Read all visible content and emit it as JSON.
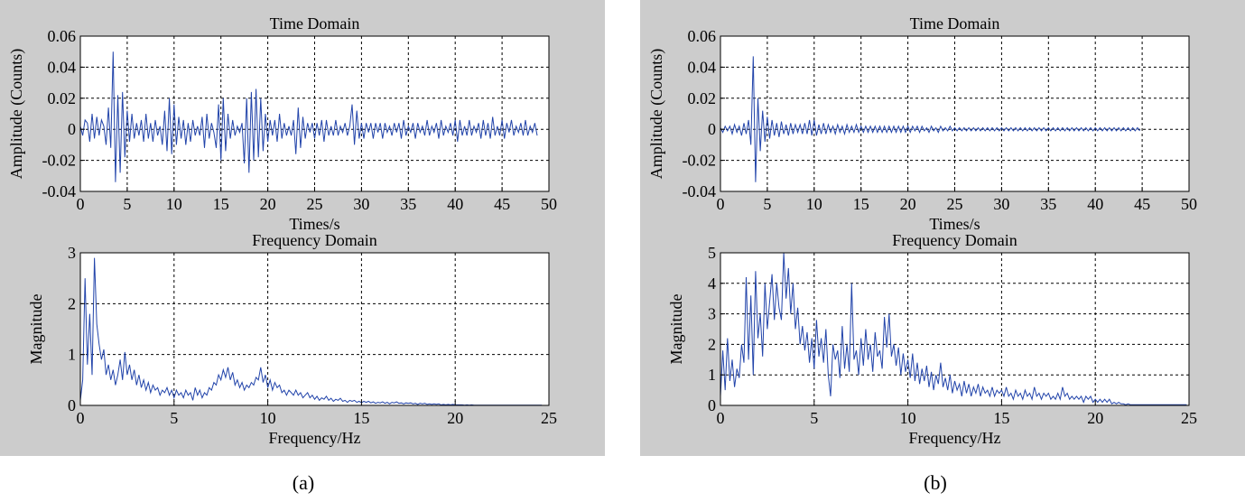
{
  "colors": {
    "panel_bg": "#cccccc",
    "plot_bg": "#ffffff",
    "line": "#2244aa",
    "grid": "#000000"
  },
  "captions": [
    "(a)",
    "(b)"
  ],
  "chart_data": [
    {
      "type": "line",
      "title": "Time Domain",
      "xlabel": "Times/s",
      "ylabel": "Amplitude (Counts)",
      "xlim": [
        0,
        50
      ],
      "ylim": [
        -0.04,
        0.06
      ],
      "xticks": [
        "0",
        "5",
        "10",
        "15",
        "20",
        "25",
        "30",
        "35",
        "40",
        "45",
        "50"
      ],
      "yticks": [
        "-0.04",
        "-0.02",
        "0",
        "0.02",
        "0.04",
        "0.06"
      ],
      "grid": true,
      "series": [
        {
          "x_step": 0.25,
          "x_start": 0,
          "values": [
            0.002,
            -0.004,
            0.006,
            0.004,
            -0.008,
            0.01,
            -0.006,
            0.008,
            -0.004,
            0.006,
            0.002,
            -0.01,
            0.014,
            -0.012,
            0.05,
            -0.034,
            0.022,
            -0.028,
            0.024,
            -0.018,
            0.012,
            -0.008,
            0.01,
            -0.006,
            0.004,
            -0.004,
            0.006,
            -0.008,
            0.01,
            -0.006,
            0.004,
            -0.008,
            0.006,
            -0.004,
            0.002,
            -0.01,
            0.012,
            -0.014,
            0.02,
            -0.016,
            0.016,
            -0.01,
            0.008,
            -0.006,
            0.006,
            -0.01,
            0.004,
            -0.008,
            0.006,
            -0.004,
            0.002,
            -0.004,
            0.008,
            -0.012,
            0.01,
            -0.006,
            0.004,
            -0.002,
            -0.012,
            0.016,
            -0.02,
            0.02,
            -0.014,
            0.01,
            -0.006,
            0.006,
            -0.004,
            0.002,
            -0.002,
            0.004,
            -0.022,
            0.02,
            -0.028,
            0.024,
            -0.02,
            0.026,
            -0.018,
            0.02,
            -0.014,
            0.01,
            -0.008,
            0.006,
            -0.004,
            0.006,
            -0.008,
            0.01,
            -0.006,
            0.004,
            -0.004,
            0.002,
            -0.004,
            0.006,
            -0.016,
            0.014,
            -0.012,
            0.008,
            -0.006,
            0.004,
            -0.002,
            0.004,
            -0.006,
            0.004,
            -0.004,
            0.006,
            -0.008,
            0.006,
            -0.004,
            0.002,
            -0.004,
            0.006,
            -0.004,
            0.002,
            -0.002,
            0.004,
            -0.004,
            0.002,
            0.016,
            -0.01,
            0.012,
            -0.006,
            0.004,
            -0.006,
            0.004,
            -0.002,
            0.004,
            -0.006,
            0.004,
            -0.002,
            0.004,
            -0.006,
            0.004,
            -0.002,
            0.002,
            -0.004,
            0.004,
            -0.002,
            0.004,
            -0.006,
            0.006,
            -0.004,
            0.002,
            -0.002,
            0.004,
            -0.006,
            0.004,
            -0.002,
            0.002,
            -0.004,
            0.006,
            -0.004,
            0.002,
            -0.002,
            0.004,
            -0.006,
            0.006,
            -0.004,
            0.002,
            -0.002,
            0.004,
            -0.004,
            0.006,
            -0.008,
            0.006,
            -0.004,
            0.002,
            -0.004,
            0.006,
            -0.004,
            0.002,
            -0.002,
            0.004,
            -0.006,
            0.006,
            -0.004,
            0.004,
            -0.006,
            0.008,
            -0.004,
            0.002,
            -0.004,
            0.006,
            -0.006,
            0.004,
            -0.002,
            0.006,
            -0.004,
            0.002,
            -0.002,
            0.004,
            -0.004,
            0.006,
            -0.004,
            0.002,
            -0.002,
            0.004,
            -0.004
          ]
        }
      ]
    },
    {
      "type": "line",
      "title": "Frequency Domain",
      "xlabel": "Frequency/Hz",
      "ylabel": "Magnitude",
      "xlim": [
        0,
        25
      ],
      "ylim": [
        0,
        3
      ],
      "xticks": [
        "0",
        "5",
        "10",
        "15",
        "20",
        "25"
      ],
      "yticks": [
        "0",
        "1",
        "2",
        "3"
      ],
      "grid": true,
      "series": [
        {
          "x_step": 0.125,
          "x_start": 0,
          "values": [
            0.1,
            0.5,
            2.5,
            0.8,
            1.8,
            0.6,
            2.9,
            1.6,
            1.2,
            0.9,
            1.1,
            0.6,
            0.8,
            0.5,
            0.7,
            0.4,
            0.6,
            0.9,
            0.5,
            1.05,
            0.6,
            0.8,
            0.5,
            0.7,
            0.4,
            0.6,
            0.35,
            0.5,
            0.3,
            0.45,
            0.25,
            0.4,
            0.3,
            0.35,
            0.2,
            0.3,
            0.25,
            0.35,
            0.2,
            0.3,
            0.15,
            0.3,
            0.2,
            0.25,
            0.15,
            0.3,
            0.2,
            0.25,
            0.1,
            0.35,
            0.2,
            0.3,
            0.15,
            0.25,
            0.2,
            0.35,
            0.3,
            0.45,
            0.4,
            0.6,
            0.5,
            0.7,
            0.55,
            0.75,
            0.5,
            0.65,
            0.4,
            0.5,
            0.35,
            0.45,
            0.3,
            0.4,
            0.35,
            0.45,
            0.4,
            0.55,
            0.5,
            0.75,
            0.45,
            0.6,
            0.35,
            0.5,
            0.3,
            0.45,
            0.35,
            0.4,
            0.25,
            0.3,
            0.2,
            0.3,
            0.25,
            0.2,
            0.3,
            0.2,
            0.25,
            0.15,
            0.2,
            0.25,
            0.15,
            0.2,
            0.12,
            0.18,
            0.1,
            0.15,
            0.12,
            0.18,
            0.1,
            0.14,
            0.08,
            0.12,
            0.1,
            0.14,
            0.08,
            0.1,
            0.06,
            0.1,
            0.08,
            0.1,
            0.06,
            0.08,
            0.05,
            0.08,
            0.06,
            0.08,
            0.05,
            0.07,
            0.04,
            0.06,
            0.05,
            0.07,
            0.04,
            0.06,
            0.03,
            0.06,
            0.05,
            0.07,
            0.04,
            0.05,
            0.03,
            0.05,
            0.04,
            0.05,
            0.03,
            0.04,
            0.02,
            0.04,
            0.03,
            0.04,
            0.02,
            0.03,
            0.02,
            0.03,
            0.02,
            0.03,
            0.01,
            0.02,
            0.01,
            0.02,
            0.01,
            0.02,
            0.01,
            0.01,
            0.01,
            0.01,
            0.005,
            0.01,
            0.005,
            0.01,
            0.005,
            0.005,
            0.005,
            0.005,
            0.005,
            0.005,
            0.005,
            0.005,
            0.005,
            0.005,
            0.005,
            0.005,
            0.005,
            0.005,
            0.005,
            0.005,
            0.005,
            0.005,
            0.005,
            0.005,
            0.005,
            0.005,
            0.005,
            0.005,
            0.005,
            0.005,
            0.005,
            0.005,
            0.005,
            0.005
          ]
        }
      ]
    },
    {
      "type": "line",
      "title": "Time Domain",
      "xlabel": "Times/s",
      "ylabel": "Amplitude (Counts)",
      "xlim": [
        0,
        50
      ],
      "ylim": [
        -0.04,
        0.06
      ],
      "xticks": [
        "0",
        "5",
        "10",
        "15",
        "20",
        "25",
        "30",
        "35",
        "40",
        "45",
        "50"
      ],
      "yticks": [
        "-0.04",
        "-0.02",
        "0",
        "0.02",
        "0.04",
        "0.06"
      ],
      "grid": true,
      "series": [
        {
          "x_step": 0.25,
          "x_start": 0,
          "values": [
            0.001,
            -0.002,
            0.002,
            -0.001,
            0.002,
            -0.003,
            0.003,
            -0.002,
            0.002,
            -0.004,
            0.004,
            -0.003,
            0.006,
            -0.01,
            0.047,
            -0.034,
            0.02,
            -0.014,
            0.012,
            -0.008,
            0.008,
            -0.006,
            0.006,
            -0.004,
            0.004,
            -0.005,
            0.005,
            -0.003,
            0.003,
            -0.004,
            0.004,
            -0.003,
            0.003,
            -0.002,
            0.003,
            -0.003,
            0.004,
            -0.003,
            0.006,
            -0.004,
            0.006,
            -0.004,
            0.003,
            -0.003,
            0.004,
            -0.003,
            0.003,
            -0.002,
            0.002,
            -0.003,
            0.003,
            -0.002,
            0.002,
            -0.003,
            0.003,
            -0.002,
            0.002,
            -0.002,
            0.003,
            -0.002,
            0.002,
            -0.002,
            0.002,
            -0.002,
            0.002,
            -0.002,
            0.002,
            -0.002,
            0.002,
            -0.002,
            0.002,
            -0.002,
            0.002,
            -0.002,
            0.002,
            -0.002,
            0.002,
            -0.002,
            0.002,
            -0.002,
            0.002,
            -0.002,
            0.002,
            -0.001,
            0.002,
            -0.002,
            0.002,
            -0.001,
            0.001,
            -0.002,
            0.002,
            -0.001,
            0.001,
            -0.002,
            0.002,
            -0.001,
            0.001,
            -0.001,
            0.002,
            -0.001,
            0.001,
            -0.001,
            0.001,
            -0.001,
            0.001,
            -0.001,
            0.001,
            -0.001,
            0.001,
            -0.001,
            0.001,
            -0.001,
            0.001,
            -0.001,
            0.001,
            -0.001,
            0.001,
            -0.001,
            0.001,
            -0.001,
            0.001,
            -0.001,
            0.001,
            -0.001,
            0.001,
            -0.001,
            0.001,
            -0.001,
            0.001,
            -0.001,
            0.001,
            -0.001,
            0.001,
            -0.001,
            0.001,
            -0.001,
            0.001,
            -0.001,
            0.001,
            -0.001,
            0.001,
            -0.001,
            0.001,
            -0.001,
            0.001,
            -0.001,
            0.001,
            -0.001,
            0.001,
            -0.001,
            0.001,
            -0.001,
            0.001,
            -0.001,
            0.001,
            -0.001,
            0.001,
            -0.001,
            0.001,
            -0.001,
            0.001,
            -0.001,
            0.001,
            -0.001,
            0.001,
            -0.001,
            0.001,
            -0.001,
            0.001,
            -0.001,
            0.001,
            -0.001,
            0.001,
            -0.001,
            0.001,
            -0.001,
            0.001,
            -0.001,
            0.001,
            -0.001
          ]
        }
      ]
    },
    {
      "type": "line",
      "title": "Frequency Domain",
      "xlabel": "Frequency/Hz",
      "ylabel": "Magnitude",
      "xlim": [
        0,
        25
      ],
      "ylim": [
        0,
        5
      ],
      "xticks": [
        "0",
        "5",
        "10",
        "15",
        "20",
        "25"
      ],
      "yticks": [
        "0",
        "1",
        "2",
        "3",
        "4",
        "5"
      ],
      "grid": true,
      "series": [
        {
          "x_step": 0.125,
          "x_start": 0,
          "values": [
            0.3,
            1.8,
            0.5,
            2.2,
            0.8,
            1.5,
            0.6,
            1.2,
            0.9,
            2.0,
            1.4,
            4.2,
            1.5,
            3.6,
            1.0,
            4.4,
            2.2,
            3.0,
            1.6,
            4.0,
            2.5,
            3.4,
            4.3,
            2.8,
            4.0,
            3.2,
            2.8,
            5.0,
            3.5,
            4.5,
            3.0,
            4.0,
            2.5,
            3.2,
            2.0,
            2.6,
            1.8,
            2.4,
            1.4,
            2.2,
            1.2,
            2.8,
            1.6,
            2.2,
            1.4,
            2.5,
            1.0,
            0.3,
            2.0,
            1.5,
            1.8,
            0.9,
            2.6,
            1.2,
            2.0,
            1.1,
            4.0,
            1.5,
            1.8,
            1.0,
            2.2,
            1.3,
            2.5,
            1.5,
            2.0,
            1.1,
            2.4,
            1.6,
            1.8,
            1.2,
            2.9,
            1.9,
            3.0,
            1.6,
            2.0,
            1.3,
            1.9,
            1.0,
            1.7,
            1.1,
            1.5,
            0.9,
            1.7,
            0.8,
            1.4,
            0.7,
            1.2,
            0.8,
            1.3,
            0.6,
            1.1,
            0.5,
            1.0,
            0.7,
            1.4,
            0.6,
            0.9,
            0.5,
            1.0,
            0.4,
            0.8,
            0.5,
            0.7,
            0.3,
            0.8,
            0.4,
            0.7,
            0.3,
            0.6,
            0.4,
            0.7,
            0.3,
            0.6,
            0.4,
            0.5,
            0.3,
            0.6,
            0.3,
            0.5,
            0.4,
            0.5,
            0.3,
            0.6,
            0.3,
            0.4,
            0.2,
            0.5,
            0.3,
            0.4,
            0.2,
            0.5,
            0.3,
            0.4,
            0.2,
            0.6,
            0.3,
            0.4,
            0.2,
            0.4,
            0.3,
            0.4,
            0.2,
            0.3,
            0.2,
            0.4,
            0.2,
            0.6,
            0.3,
            0.4,
            0.2,
            0.3,
            0.2,
            0.3,
            0.2,
            0.3,
            0.1,
            0.3,
            0.2,
            0.3,
            0.1,
            0.2,
            0.1,
            0.2,
            0.1,
            0.2,
            0.1,
            0.2,
            0.05,
            0.1,
            0.05,
            0.1,
            0.05,
            0.05,
            0.02,
            0.05,
            0.02,
            0.02,
            0.02,
            0.02,
            0.02,
            0.02,
            0.02,
            0.02,
            0.02,
            0.02,
            0.02,
            0.02,
            0.02,
            0.02,
            0.02,
            0.02,
            0.02,
            0.02,
            0.02,
            0.02,
            0.02,
            0.02,
            0.02,
            0.02,
            0.02
          ]
        }
      ]
    }
  ]
}
